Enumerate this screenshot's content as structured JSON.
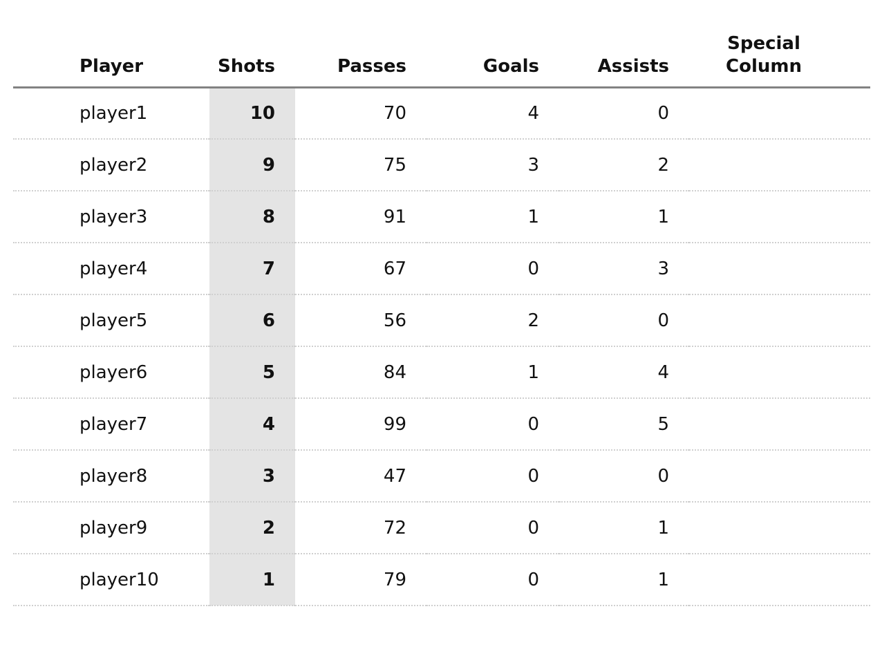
{
  "chart_data": {
    "type": "table",
    "title": "",
    "columns": [
      "Player",
      "Shots",
      "Passes",
      "Goals",
      "Assists",
      "Special Column"
    ],
    "rows": [
      [
        "player1",
        "10",
        "70",
        "4",
        "0",
        ""
      ],
      [
        "player2",
        "9",
        "75",
        "3",
        "2",
        ""
      ],
      [
        "player3",
        "8",
        "91",
        "1",
        "1",
        ""
      ],
      [
        "player4",
        "7",
        "67",
        "0",
        "3",
        ""
      ],
      [
        "player5",
        "6",
        "56",
        "2",
        "0",
        ""
      ],
      [
        "player6",
        "5",
        "84",
        "1",
        "4",
        ""
      ],
      [
        "player7",
        "4",
        "99",
        "0",
        "5",
        ""
      ],
      [
        "player8",
        "3",
        "47",
        "0",
        "0",
        ""
      ],
      [
        "player9",
        "2",
        "72",
        "0",
        "1",
        ""
      ],
      [
        "player10",
        "1",
        "79",
        "0",
        "1",
        ""
      ]
    ],
    "highlighted_column": "Shots",
    "layout": {
      "header_rule": "solid",
      "row_dividers": "dotted",
      "grid": "off"
    }
  },
  "table": {
    "columns": [
      {
        "label": "Player",
        "align": "left"
      },
      {
        "label": "Shots",
        "align": "right",
        "highlighted": true
      },
      {
        "label": "Passes",
        "align": "right"
      },
      {
        "label": "Goals",
        "align": "right"
      },
      {
        "label": "Assists",
        "align": "right"
      },
      {
        "label": "Special\nColumn",
        "align": "center"
      }
    ]
  },
  "colors": {
    "highlight_bg": "#e4e4e4",
    "header_rule": "#828282",
    "row_divider": "#cfcfcf",
    "text": "#111111"
  }
}
